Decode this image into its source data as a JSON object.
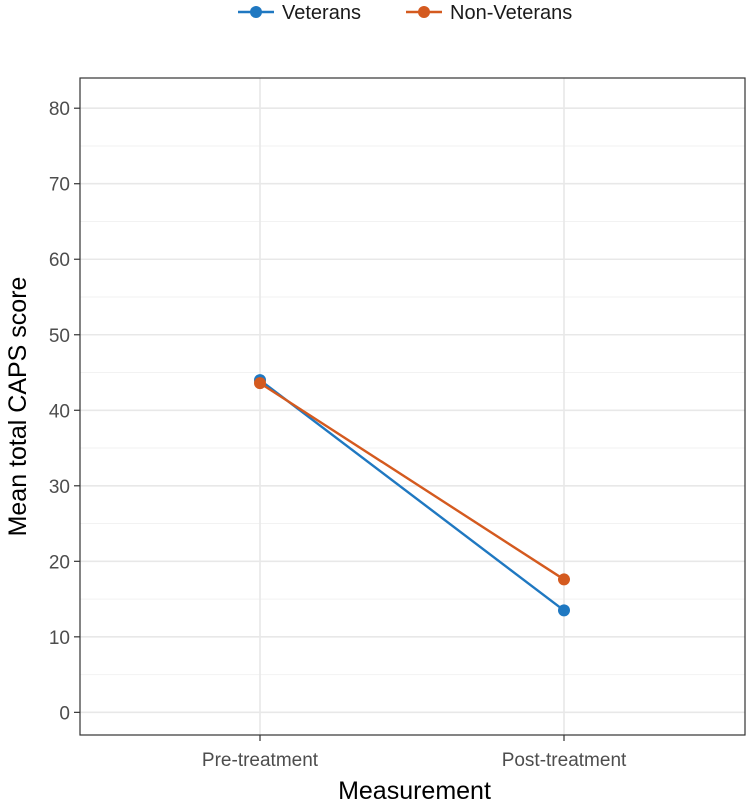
{
  "chart_data": {
    "type": "line",
    "xlabel": "Measurement",
    "ylabel": "Mean total CAPS score",
    "categories": [
      "Pre-treatment",
      "Post-treatment"
    ],
    "ylim": [
      -3,
      84
    ],
    "yticks": [
      0,
      10,
      20,
      30,
      40,
      50,
      60,
      70,
      80
    ],
    "grid": true,
    "legend_position": "top",
    "series": [
      {
        "name": "Veterans",
        "color": "#1f78c1",
        "values": [
          44.0,
          13.5
        ]
      },
      {
        "name": "Non-Veterans",
        "color": "#d45a1f",
        "values": [
          43.6,
          17.6
        ]
      }
    ]
  }
}
